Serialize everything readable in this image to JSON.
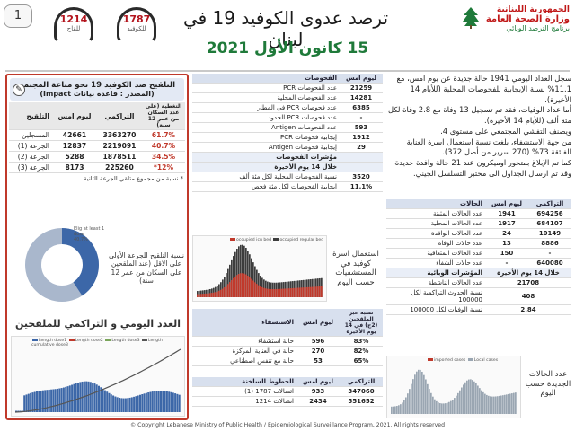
{
  "header": {
    "page_number": "1",
    "hotline_vaccine": {
      "number": "1214",
      "label": "للقاح"
    },
    "hotline_covid": {
      "number": "1787",
      "label": "للكوفيد"
    },
    "title": "ترصد عدوى الكوفيد 19 في لبنان",
    "date": "15 كانون الأول 2021",
    "ministry_line1": "الجمهورية اللبنانية",
    "ministry_line2": "وزارة الصحة العامة",
    "ministry_line3": "برنامج الترصد الوبائي"
  },
  "summary": {
    "paragraph_1": "سجل العداد اليومي 1941 حالة جديدة عن يوم امس، مع 11.1% نسبة الإيجابية للفحوصات المحلية (للأيام 14 الأخيرة).",
    "paragraph_2": "أما عداد الوفيات، فقد تم تسجيل 13 وفاة مع 2.8 وفاة لكل مئة ألف (للأيام 14 الأخيرة).",
    "paragraph_3": "ويصنف التفشي المجتمعي على مستوى 4.",
    "paragraph_4": "من جهة الاستشفاء، بلغت نسبة استعمال اسرة العناية الفائقة 73% (270 سرير من أصل 372).",
    "paragraph_5": "كما تم الإبلاغ بمتحور اوميكرون عند 21 حالة وافدة جديدة، وقد تم ارسال الجداول الى مختبر التسلسل الجيني."
  },
  "cases_table": {
    "headers": [
      "الحالات",
      "ليوم امس",
      "التراكمي"
    ],
    "rows": [
      {
        "label": "عدد الحالات المثبتة",
        "today": "1941",
        "total": "694256"
      },
      {
        "label": "عدد الحالات المحلية",
        "today": "1917",
        "total": "684107"
      },
      {
        "label": "عدد الحالات الوافدة",
        "today": "24",
        "total": "10149"
      },
      {
        "label": "عدد حالات الوفاة",
        "today": "13",
        "total": "8886"
      },
      {
        "label": "عدد الحالات المتعافية",
        "today": "150",
        "total": "-"
      },
      {
        "label": "عدد حالات الشفاء",
        "today": "-",
        "total": "640080"
      }
    ],
    "indicators_header": "المؤشرات الوبائية",
    "indicators_period": "خلال 14 يوم الأخيرة",
    "indicators": [
      {
        "label": "عدد الحالات الناشطة",
        "value": "21708"
      },
      {
        "label": "نسبة الحدوث التراكمية لكل 100000",
        "value": "408"
      },
      {
        "label": "نسبة الوفيات لكل 100000",
        "value": "2.84"
      }
    ]
  },
  "tests_table": {
    "headers": [
      "الفحوصات",
      "ليوم امس"
    ],
    "rows": [
      {
        "label": "عدد الفحوصات PCR",
        "value": "21259"
      },
      {
        "label": "عدد الفحوصات المحلية",
        "value": "14281"
      },
      {
        "label": "عدد فحوصات PCR في المطار",
        "value": "6385"
      },
      {
        "label": "عدد فحوصات PCR الحدود",
        "value": "-"
      },
      {
        "label": "عدد الفحوصات Antigen",
        "value": "593"
      },
      {
        "label": "إيجابية فحوصات PCR",
        "value": "1912"
      },
      {
        "label": "إيجابية فحوصات Antigen",
        "value": "29"
      }
    ],
    "indicators_header": "مؤشرات الفحوصات",
    "indicators_period": "خلال 14 يوم الأخيرة",
    "indicators": [
      {
        "label": "نسبة الفحوصات المحلية لكل مئة ألف",
        "value": "3520"
      },
      {
        "label": "ايجابية الفحوصات لكل مئة فحص",
        "value": "11.1%"
      }
    ]
  },
  "hospital_caption": "استعمال اسرة كوفيد في المستشفيات حسب اليوم",
  "hospital_chart_legend": [
    "occupied icu bed",
    "occupied regular bed"
  ],
  "hospital_table": {
    "headers": [
      "الاستشفاء",
      "ليوم امس",
      "نسبة عبر الملقحين (2ج) في 14 يوم الأخيرة"
    ],
    "rows": [
      {
        "label": "حالة استشفاء",
        "value": "596",
        "pct": "83%"
      },
      {
        "label": "حالة في العناية المركزة",
        "value": "270",
        "pct": "82%"
      },
      {
        "label": "حالة مع تنفس اصطناعي",
        "value": "53",
        "pct": "65%"
      }
    ]
  },
  "hotlines_table": {
    "headers": [
      "الخطوط الساخنة",
      "ليوم امس",
      "التراكمي"
    ],
    "rows": [
      {
        "label": "اتصالات 1787 (1)",
        "today": "933",
        "total": "347060"
      },
      {
        "label": "اتصالات 1214",
        "today": "2434",
        "total": "551652"
      }
    ]
  },
  "daily_cases_caption": "عدد الحالات الجديدة حسب اليوم",
  "daily_cases_legend": [
    "imported cases",
    "Local cases"
  ],
  "vaccination": {
    "title": "التلقيح ضد الكوفيد 19 نحو مناعة المجتمع",
    "subtitle": "(المصدر : قاعدة بيانات Impact)",
    "headers": [
      "التلقيح",
      "ليوم امس",
      "التراكمي",
      "التغطية (على عدد السكان من عمر 12 سنة)"
    ],
    "rows": [
      {
        "label": "المسجلين",
        "today": "42661",
        "total": "3363270",
        "coverage": "61.7%"
      },
      {
        "label": "الجرعة (1)",
        "today": "12837",
        "total": "2219091",
        "coverage": "40.7%"
      },
      {
        "label": "الجرعة (2)",
        "today": "5288",
        "total": "1878511",
        "coverage": "34.5%"
      },
      {
        "label": "الجرعة (3)",
        "today": "8173",
        "total": "225260",
        "coverage": "12%*"
      }
    ],
    "note": "* نسبة من مجموع متلقي الجرعة الثانية",
    "donut_legend": [
      "Elig at least 1 dose",
      "40.7%"
    ],
    "donut_caption": "نسبة التلقيح للجرعة الأولى على الاقل (عند الملقحين على السكان من عمر 12 سنة)",
    "chart_title": "العدد اليومي و التراكمي للملقحين",
    "chart_legend": [
      "Length dose1",
      "Length dose2",
      "Length dose3",
      "Length cumulative dose3"
    ],
    "donut_fraction": 0.407
  },
  "footer": "© Copyright Lebanese Ministry of Public Health / Epidemiological Surveillance Program, 2021. All rights reserved",
  "colors": {
    "accent_red": "#c0392b",
    "accent_green": "#1f7a3a",
    "header_blue": "#d8e0ee"
  }
}
